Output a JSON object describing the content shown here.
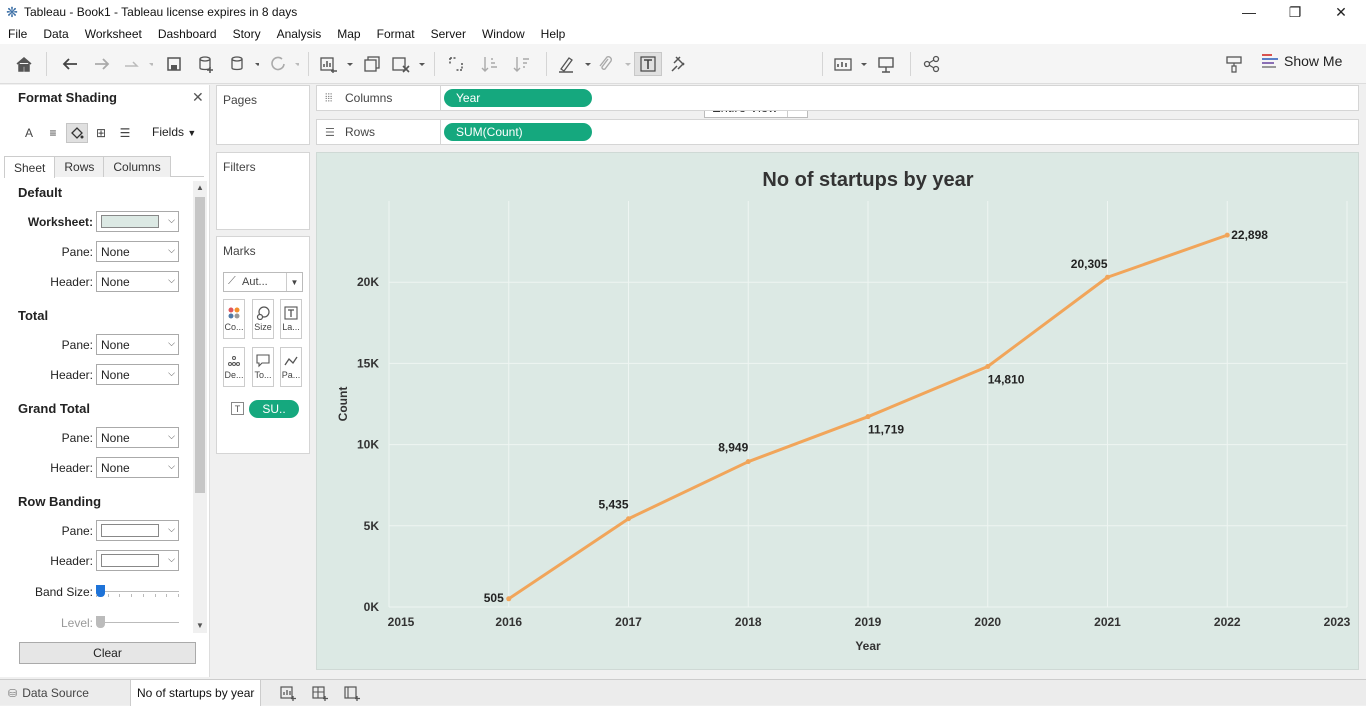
{
  "window": {
    "title": "Tableau - Book1 - Tableau license expires in 8 days"
  },
  "menu": [
    "File",
    "Data",
    "Worksheet",
    "Dashboard",
    "Story",
    "Analysis",
    "Map",
    "Format",
    "Server",
    "Window",
    "Help"
  ],
  "toolbar": {
    "fit_value": "Entire View",
    "show_me_label": "Show Me"
  },
  "format_pane": {
    "title": "Format Shading",
    "fields_label": "Fields",
    "tabs": [
      "Sheet",
      "Rows",
      "Columns"
    ],
    "active_tab": "Sheet",
    "sections": {
      "default": {
        "heading": "Default",
        "worksheet_label": "Worksheet:",
        "pane_label": "Pane:",
        "pane_value": "None",
        "header_label": "Header:",
        "header_value": "None"
      },
      "total": {
        "heading": "Total",
        "pane_label": "Pane:",
        "pane_value": "None",
        "header_label": "Header:",
        "header_value": "None"
      },
      "grand_total": {
        "heading": "Grand Total",
        "pane_label": "Pane:",
        "pane_value": "None",
        "header_label": "Header:",
        "header_value": "None"
      },
      "row_banding": {
        "heading": "Row Banding",
        "pane_label": "Pane:",
        "header_label": "Header:",
        "band_size_label": "Band Size:",
        "level_label": "Level:"
      }
    },
    "clear_label": "Clear",
    "worksheet_color": "#dce9e4"
  },
  "cards": {
    "pages_label": "Pages",
    "filters_label": "Filters",
    "marks_label": "Marks",
    "mark_type": "Aut...",
    "mark_buttons": [
      {
        "label": "Co...",
        "icon": "color-icon"
      },
      {
        "label": "Size",
        "icon": "size-icon"
      },
      {
        "label": "La...",
        "icon": "label-icon"
      },
      {
        "label": "De...",
        "icon": "detail-icon"
      },
      {
        "label": "To...",
        "icon": "tooltip-icon"
      },
      {
        "label": "Pa...",
        "icon": "path-icon"
      }
    ],
    "label_pill": "SU.."
  },
  "shelves": {
    "columns_label": "Columns",
    "columns_pill": "Year",
    "rows_label": "Rows",
    "rows_pill": "SUM(Count)"
  },
  "sheet_tabs": {
    "data_source": "Data Source",
    "active_sheet": "No of startups by year"
  },
  "colors": {
    "pill": "#15a87e",
    "line": "#f1a55a",
    "viz_bg": "#dce9e4"
  },
  "chart_data": {
    "type": "line",
    "title": "No of startups by year",
    "xlabel": "Year",
    "ylabel": "Count",
    "x_ticks": [
      "2015",
      "2016",
      "2017",
      "2018",
      "2019",
      "2020",
      "2021",
      "2022",
      "2023"
    ],
    "xlim": [
      2015,
      2023
    ],
    "y_ticks": [
      "0K",
      "5K",
      "10K",
      "15K",
      "20K"
    ],
    "ylim": [
      0,
      25000
    ],
    "grid": true,
    "series": [
      {
        "x": [
          2016,
          2017,
          2018,
          2019,
          2020,
          2021,
          2022
        ],
        "values": [
          505,
          5435,
          8949,
          11719,
          14810,
          20305,
          22898
        ],
        "labels": [
          "505",
          "5,435",
          "8,949",
          "11,719",
          "14,810",
          "20,305",
          "22,898"
        ]
      }
    ]
  }
}
